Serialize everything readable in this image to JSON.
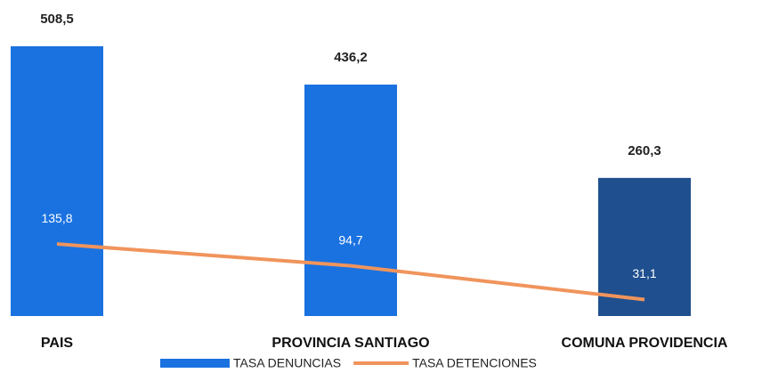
{
  "chart_data": {
    "type": "bar",
    "categories": [
      "PAIS",
      "PROVINCIA SANTIAGO",
      "COMUNA PROVIDENCIA"
    ],
    "series": [
      {
        "name": "TASA DENUNCIAS",
        "type": "bar",
        "color": "#1a72e0",
        "colors": [
          "#1a72e0",
          "#1a72e0",
          "#1f4f8e"
        ],
        "values": [
          508.5,
          436.2,
          260.3
        ],
        "value_labels": [
          "508,5",
          "436,2",
          "260,3"
        ]
      },
      {
        "name": "TASA DETENCIONES",
        "type": "line",
        "color": "#f0945c",
        "values": [
          135.8,
          94.7,
          31.1
        ],
        "value_labels": [
          "135,8",
          "94,7",
          "31,1"
        ]
      }
    ],
    "legend": "bottom"
  }
}
